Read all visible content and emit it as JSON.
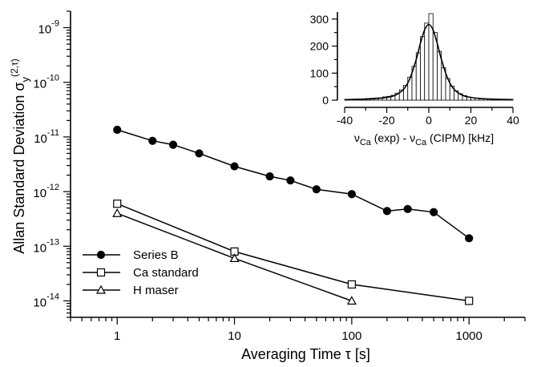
{
  "chart_data": [
    {
      "type": "line",
      "xscale": "log",
      "yscale": "log",
      "xlim": [
        0.4,
        3000
      ],
      "ylim": [
        5e-15,
        2e-09
      ],
      "xlabel": "Averaging Time   τ [s]",
      "ylabel": "Allan Standard Deviation σ",
      "ylabel_sub": "y",
      "ylabel_sup": "(2,τ)",
      "x_ticks": [
        1,
        10,
        100,
        1000
      ],
      "x_tick_labels": [
        "1",
        "10",
        "100",
        "1000"
      ],
      "y_ticks": [
        1e-14,
        1e-13,
        1e-12,
        1e-11,
        1e-10,
        1e-09
      ],
      "y_tick_labels": [
        {
          "base": "10",
          "exp": "-14"
        },
        {
          "base": "10",
          "exp": "-13"
        },
        {
          "base": "10",
          "exp": "-12"
        },
        {
          "base": "10",
          "exp": "-11"
        },
        {
          "base": "10",
          "exp": "-10"
        },
        {
          "base": "10",
          "exp": "-9"
        }
      ],
      "legend_position": "bottom-left",
      "series": [
        {
          "name": "Series B",
          "marker": "filled-circle",
          "x": [
            1,
            2,
            3,
            5,
            10,
            20,
            30,
            50,
            100,
            200,
            300,
            500,
            1000
          ],
          "y": [
            1.35e-11,
            8.5e-12,
            7.2e-12,
            5e-12,
            2.9e-12,
            1.9e-12,
            1.6e-12,
            1.1e-12,
            9e-13,
            4.4e-13,
            4.8e-13,
            4.2e-13,
            1.4e-13
          ]
        },
        {
          "name": "Ca standard",
          "marker": "open-square",
          "x": [
            1,
            10,
            100,
            1000
          ],
          "y": [
            6e-13,
            8e-14,
            2e-14,
            1e-14
          ]
        },
        {
          "name": "H maser",
          "marker": "open-triangle",
          "x": [
            1,
            10,
            100
          ],
          "y": [
            4e-13,
            6e-14,
            1e-14
          ]
        }
      ]
    },
    {
      "type": "bar",
      "inset": true,
      "xlim": [
        -40,
        40
      ],
      "ylim": [
        0,
        320
      ],
      "x_ticks": [
        -40,
        -20,
        0,
        20,
        40
      ],
      "y_ticks": [
        0,
        100,
        200,
        300
      ],
      "xlabel_parts": [
        {
          "nu": "ν",
          "sub": "Ca",
          "text": " (exp) -  "
        },
        {
          "nu": "ν",
          "sub": "Ca",
          "text": " (CIPM)  [kHz]"
        }
      ],
      "histogram": {
        "bin_width": 2,
        "bin_centers": [
          -39,
          -37,
          -35,
          -33,
          -31,
          -29,
          -27,
          -25,
          -23,
          -21,
          -19,
          -17,
          -15,
          -13,
          -11,
          -9,
          -7,
          -5,
          -3,
          -1,
          1,
          3,
          5,
          7,
          9,
          11,
          13,
          15,
          17,
          19,
          21,
          23,
          25,
          27,
          29,
          31,
          33,
          35,
          37,
          39
        ],
        "counts": [
          3,
          3,
          4,
          4,
          5,
          6,
          7,
          8,
          9,
          12,
          14,
          18,
          26,
          38,
          55,
          85,
          125,
          175,
          235,
          285,
          320,
          250,
          180,
          120,
          80,
          52,
          35,
          24,
          17,
          12,
          9,
          7,
          5,
          4,
          4,
          3,
          3,
          3,
          3,
          3
        ]
      },
      "fit_curve": {
        "x": [
          -40,
          -30,
          -25,
          -20,
          -16,
          -12,
          -9,
          -6,
          -4,
          -2,
          0,
          2,
          4,
          6,
          9,
          12,
          16,
          20,
          25,
          30,
          40
        ],
        "y": [
          2,
          4,
          6,
          10,
          18,
          40,
          80,
          150,
          210,
          260,
          280,
          260,
          210,
          150,
          80,
          40,
          18,
          10,
          6,
          4,
          2
        ]
      }
    }
  ]
}
